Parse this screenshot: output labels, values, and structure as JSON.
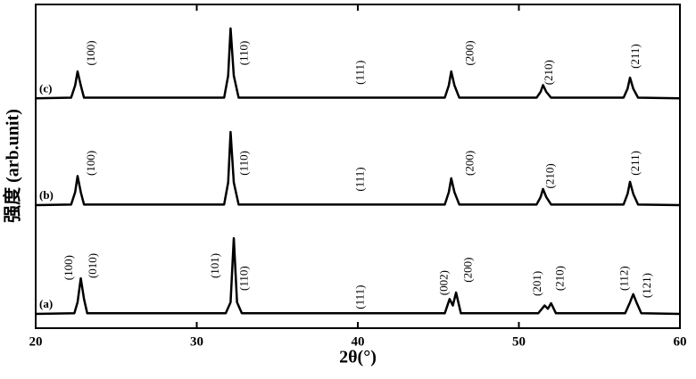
{
  "chart_data": {
    "type": "line",
    "x_label": "2θ(°)",
    "y_label": "强度 (arb.unit)",
    "xlim": [
      20,
      60
    ],
    "xticks": [
      20,
      30,
      40,
      50,
      60
    ],
    "ylim": [
      0,
      100
    ],
    "series": [
      {
        "name": "(a)",
        "color": "#000000",
        "x": [
          20,
          22.4,
          22.6,
          22.8,
          23.0,
          23.2,
          31.8,
          32.1,
          32.3,
          32.5,
          32.8,
          45.4,
          45.7,
          45.9,
          46.1,
          46.4,
          51.2,
          51.6,
          51.8,
          52.0,
          52.3,
          56.6,
          56.9,
          57.1,
          57.3,
          57.6,
          60
        ],
        "values": [
          4.4,
          4.6,
          8,
          15.4,
          9,
          4.6,
          4.6,
          8,
          27.8,
          8,
          4.6,
          4.6,
          9,
          7,
          11,
          4.6,
          4.6,
          7,
          6,
          7.7,
          4.6,
          4.6,
          8,
          10.5,
          8,
          4.6,
          4.4
        ]
      },
      {
        "name": "(b)",
        "color": "#000000",
        "x": [
          20,
          22.2,
          22.45,
          22.6,
          22.8,
          23.0,
          31.7,
          31.95,
          32.1,
          32.3,
          32.6,
          45.4,
          45.65,
          45.8,
          46.0,
          46.3,
          51.1,
          51.35,
          51.5,
          51.7,
          52.0,
          56.5,
          56.75,
          56.9,
          57.1,
          57.4,
          60
        ],
        "values": [
          38,
          38.2,
          42,
          47,
          42,
          38.2,
          38.2,
          45,
          60.6,
          45,
          38.2,
          38.2,
          42,
          46.3,
          42,
          38.2,
          38.2,
          40.5,
          43,
          40.5,
          38.2,
          38.2,
          41.5,
          45.2,
          41.5,
          38.2,
          38
        ]
      },
      {
        "name": "(c)",
        "color": "#000000",
        "x": [
          20,
          22.2,
          22.45,
          22.6,
          22.8,
          23.0,
          31.7,
          31.95,
          32.1,
          32.3,
          32.6,
          45.4,
          45.65,
          45.8,
          46.0,
          46.3,
          51.1,
          51.35,
          51.5,
          51.7,
          52.0,
          56.5,
          56.75,
          56.9,
          57.1,
          57.4,
          60
        ],
        "values": [
          71,
          71.2,
          75,
          79.3,
          75,
          71.2,
          71.2,
          78,
          92.6,
          78,
          71.2,
          71.2,
          75,
          79.3,
          75,
          71.2,
          71.2,
          73,
          75.1,
          73,
          71.2,
          71.2,
          74,
          77.4,
          74,
          71.2,
          71
        ]
      }
    ],
    "annotations": [
      {
        "text": "(100)",
        "x": 23.5,
        "y": 85
      },
      {
        "text": "(110)",
        "x": 33,
        "y": 85
      },
      {
        "text": "(111)",
        "x": 40.2,
        "y": 79
      },
      {
        "text": "(200)",
        "x": 47,
        "y": 85
      },
      {
        "text": "(210)",
        "x": 51.9,
        "y": 79
      },
      {
        "text": "(211)",
        "x": 57.3,
        "y": 84
      },
      {
        "text": "(100)",
        "x": 23.5,
        "y": 51
      },
      {
        "text": "(110)",
        "x": 33,
        "y": 51
      },
      {
        "text": "(111)",
        "x": 40.2,
        "y": 46
      },
      {
        "text": "(200)",
        "x": 47,
        "y": 51
      },
      {
        "text": "(210)",
        "x": 52,
        "y": 47
      },
      {
        "text": "(211)",
        "x": 57.3,
        "y": 51
      },
      {
        "text": "(100)",
        "x": 22.1,
        "y": 18.7
      },
      {
        "text": "(010)",
        "x": 23.6,
        "y": 19.3
      },
      {
        "text": "(101)",
        "x": 31.2,
        "y": 19.3
      },
      {
        "text": "(110)",
        "x": 33,
        "y": 15.4
      },
      {
        "text": "(111)",
        "x": 40.2,
        "y": 9.6
      },
      {
        "text": "(002)",
        "x": 45.4,
        "y": 14
      },
      {
        "text": "(200)",
        "x": 46.9,
        "y": 18
      },
      {
        "text": "(201)",
        "x": 51.2,
        "y": 13.8
      },
      {
        "text": "(210)",
        "x": 52.6,
        "y": 15.4
      },
      {
        "text": "(112)",
        "x": 56.6,
        "y": 15.4
      },
      {
        "text": "(121)",
        "x": 58,
        "y": 13.2
      }
    ]
  }
}
